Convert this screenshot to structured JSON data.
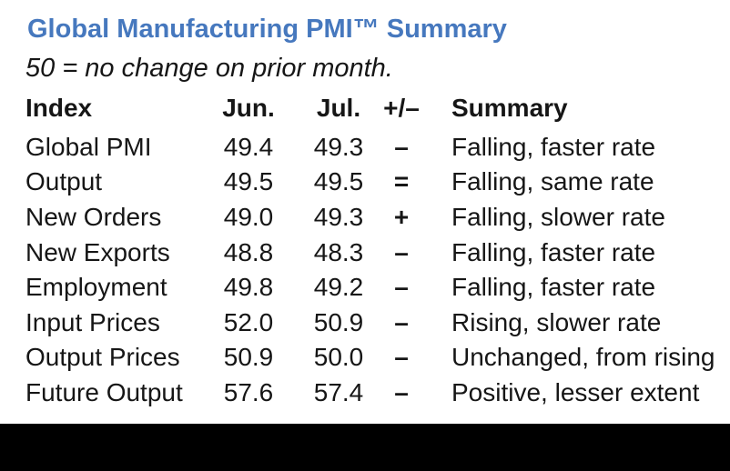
{
  "title": "Global Manufacturing PMI™ Summary",
  "subtitle": "50 = no change on prior month.",
  "colors": {
    "title_blue": "#4678be",
    "body_text": "#161616",
    "footer_bar": "#000000"
  },
  "table": {
    "headers": {
      "index": "Index",
      "jun": "Jun.",
      "jul": "Jul.",
      "change": "+/–",
      "summary": "Summary"
    },
    "rows": [
      {
        "index": "Global PMI",
        "jun": "49.4",
        "jul": "49.3",
        "change": "–",
        "summary": "Falling, faster rate"
      },
      {
        "index": "Output",
        "jun": "49.5",
        "jul": "49.5",
        "change": "=",
        "summary": "Falling, same rate"
      },
      {
        "index": "New Orders",
        "jun": "49.0",
        "jul": "49.3",
        "change": "+",
        "summary": "Falling, slower rate"
      },
      {
        "index": "New Exports",
        "jun": "48.8",
        "jul": "48.3",
        "change": "–",
        "summary": "Falling, faster rate"
      },
      {
        "index": "Employment",
        "jun": "49.8",
        "jul": "49.2",
        "change": "–",
        "summary": "Falling, faster rate"
      },
      {
        "index": "Input Prices",
        "jun": "52.0",
        "jul": "50.9",
        "change": "–",
        "summary": "Rising, slower rate"
      },
      {
        "index": "Output Prices",
        "jun": "50.9",
        "jul": "50.0",
        "change": "–",
        "summary": "Unchanged, from rising"
      },
      {
        "index": "Future Output",
        "jun": "57.6",
        "jul": "57.4",
        "change": "–",
        "summary": "Positive, lesser extent"
      }
    ]
  },
  "chart_data": {
    "type": "table",
    "title": "Global Manufacturing PMI™ Summary",
    "note": "50 = no change on prior month.",
    "columns": [
      "Index",
      "Jun.",
      "Jul.",
      "+/–",
      "Summary"
    ],
    "categories": [
      "Global PMI",
      "Output",
      "New Orders",
      "New Exports",
      "Employment",
      "Input Prices",
      "Output Prices",
      "Future Output"
    ],
    "series": [
      {
        "name": "Jun.",
        "values": [
          49.4,
          49.5,
          49.0,
          48.8,
          49.8,
          52.0,
          50.9,
          57.6
        ]
      },
      {
        "name": "Jul.",
        "values": [
          49.3,
          49.5,
          49.3,
          48.3,
          49.2,
          50.9,
          50.0,
          57.4
        ]
      }
    ],
    "direction": [
      "–",
      "=",
      "+",
      "–",
      "–",
      "–",
      "–",
      "–"
    ],
    "summaries": [
      "Falling, faster rate",
      "Falling, same rate",
      "Falling, slower rate",
      "Falling, faster rate",
      "Falling, faster rate",
      "Rising, slower rate",
      "Unchanged, from rising",
      "Positive, lesser extent"
    ]
  }
}
